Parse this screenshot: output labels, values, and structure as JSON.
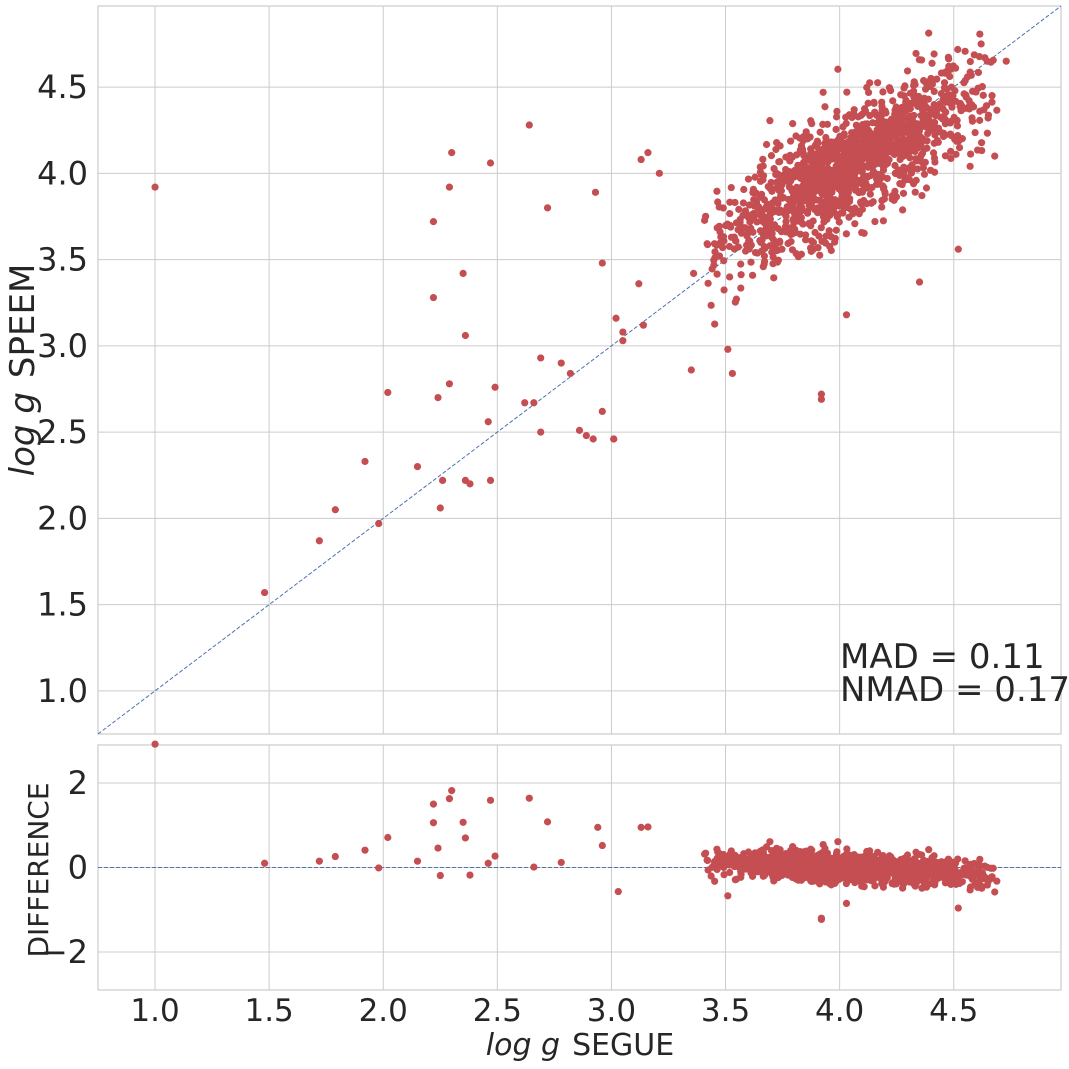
{
  "chart_data": [
    {
      "type": "scatter",
      "panel": "main",
      "xlabel": "",
      "ylabel": "log g  SPEEM",
      "ylabel_math": "log g",
      "ylabel_text": "SPEEM",
      "xlim": [
        0.75,
        4.97
      ],
      "ylim": [
        0.75,
        4.97
      ],
      "y_ticks": [
        1.0,
        1.5,
        2.0,
        2.5,
        3.0,
        3.5,
        4.0,
        4.5
      ],
      "y_tick_labels": [
        "1.0",
        "1.5",
        "2.0",
        "2.5",
        "3.0",
        "3.5",
        "4.0",
        "4.5"
      ],
      "grid": true,
      "reference_line": "y = x (dashed)",
      "marker_color": "#c44e52",
      "line_color": "#4c72b0",
      "annotations": [
        "MAD = 0.11",
        "NMAD = 0.17"
      ],
      "series": [
        {
          "points_note": "Sparse outliers read from the plot; dense cloud summarized below",
          "x": [
            1.0,
            1.48,
            1.72,
            1.79,
            1.92,
            1.98,
            2.02,
            2.15,
            2.22,
            2.22,
            2.24,
            2.25,
            2.26,
            2.29,
            2.29,
            2.3,
            2.35,
            2.36,
            2.36,
            2.38,
            2.46,
            2.47,
            2.47,
            2.49,
            2.62,
            2.64,
            2.66,
            2.69,
            2.69,
            2.72,
            2.78,
            2.82,
            2.86,
            2.89,
            2.92,
            2.93,
            2.96,
            2.96,
            3.01,
            3.01,
            3.02,
            3.05,
            3.05,
            3.12,
            3.13,
            3.14,
            3.16,
            3.21,
            3.35,
            3.36,
            3.51,
            3.53,
            3.92,
            3.92,
            4.03,
            4.35,
            4.52,
            4.62,
            4.73
          ],
          "y": [
            3.92,
            1.57,
            1.87,
            2.05,
            2.33,
            1.97,
            2.73,
            2.3,
            3.72,
            3.28,
            2.7,
            2.06,
            2.22,
            3.92,
            2.78,
            4.12,
            3.42,
            3.06,
            2.22,
            2.2,
            2.56,
            2.22,
            4.06,
            2.76,
            2.67,
            4.28,
            2.67,
            2.93,
            2.5,
            3.8,
            2.9,
            2.84,
            2.51,
            2.48,
            2.46,
            3.89,
            3.48,
            2.62,
            2.46,
            2.46,
            3.16,
            3.08,
            3.03,
            3.36,
            4.08,
            3.12,
            4.12,
            4.0,
            2.86,
            3.42,
            2.98,
            2.84,
            2.72,
            2.69,
            3.18,
            3.37,
            3.56,
            4.75,
            4.65
          ]
        }
      ],
      "dense_cloud": {
        "x_range": [
          3.4,
          4.7
        ],
        "center_x": 4.05,
        "center_y": 4.0,
        "trend": "along y = x"
      }
    },
    {
      "type": "scatter",
      "panel": "residual",
      "xlabel": "log g  SEGUE",
      "xlabel_math": "log g",
      "xlabel_text": "SEGUE",
      "ylabel": "DIFFERENCE",
      "xlim": [
        0.75,
        4.97
      ],
      "ylim": [
        -2.9,
        2.9
      ],
      "x_ticks": [
        1.0,
        1.5,
        2.0,
        2.5,
        3.0,
        3.5,
        4.0,
        4.5
      ],
      "x_tick_labels": [
        "1.0",
        "1.5",
        "2.0",
        "2.5",
        "3.0",
        "3.5",
        "4.0",
        "4.5"
      ],
      "y_ticks": [
        2,
        0,
        -2
      ],
      "y_tick_labels": [
        "2",
        "0",
        "−2"
      ],
      "grid": true,
      "reference_line": "y = 0 (dashed)",
      "series": [
        {
          "points_note": "Difference = SPEEM minus SEGUE for sparse outliers",
          "x": [
            1.0,
            1.48,
            1.72,
            1.79,
            1.92,
            1.98,
            2.02,
            2.15,
            2.22,
            2.22,
            2.24,
            2.25,
            2.29,
            2.3,
            2.35,
            2.36,
            2.38,
            2.46,
            2.47,
            2.49,
            2.64,
            2.66,
            2.72,
            2.78,
            2.94,
            2.96,
            3.03,
            3.13,
            3.16,
            3.51,
            3.92,
            3.92,
            4.03,
            4.52
          ],
          "y": [
            2.92,
            0.1,
            0.15,
            0.26,
            0.41,
            -0.01,
            0.71,
            0.15,
            1.5,
            1.06,
            0.46,
            -0.19,
            1.63,
            1.82,
            1.07,
            0.7,
            -0.18,
            0.1,
            1.59,
            0.27,
            1.64,
            0.01,
            1.08,
            0.12,
            0.95,
            0.52,
            -0.57,
            0.95,
            0.96,
            -0.67,
            -1.2,
            -1.23,
            -0.85,
            -0.96
          ]
        }
      ],
      "dense_cloud": {
        "x_range": [
          3.4,
          4.7
        ],
        "center_y": 0.0,
        "spread": 0.35
      }
    }
  ]
}
